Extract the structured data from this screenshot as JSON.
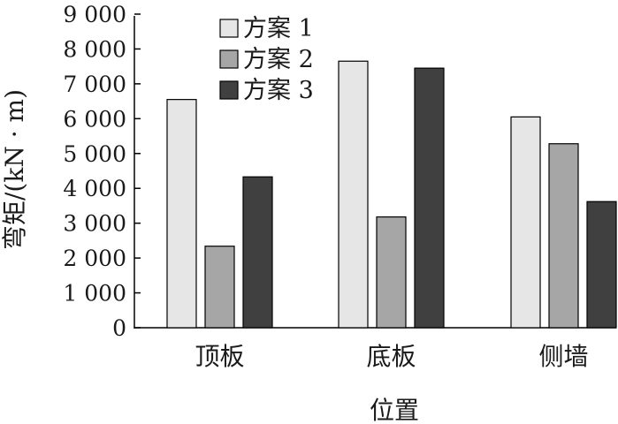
{
  "chart_data": {
    "type": "bar",
    "categories": [
      "顶板",
      "底板",
      "侧墙"
    ],
    "series": [
      {
        "name": "方案 1",
        "values": [
          6550,
          7650,
          6050
        ],
        "color": "#e6e6e6"
      },
      {
        "name": "方案 2",
        "values": [
          2340,
          3180,
          5280
        ],
        "color": "#a6a6a6"
      },
      {
        "name": "方案 3",
        "values": [
          4330,
          7450,
          3620
        ],
        "color": "#404040"
      }
    ],
    "xlabel": "位置",
    "ylabel": "弯矩/(kN · m)",
    "ylim": [
      0,
      9000
    ],
    "yticks": [
      0,
      1000,
      2000,
      3000,
      4000,
      5000,
      6000,
      7000,
      8000,
      9000
    ],
    "ytick_labels": [
      "0",
      "1 000",
      "2 000",
      "3 000",
      "4 000",
      "5 000",
      "6 000",
      "7 000",
      "8 000",
      "9 000"
    ],
    "grid": false,
    "legend_position": "top-left"
  }
}
